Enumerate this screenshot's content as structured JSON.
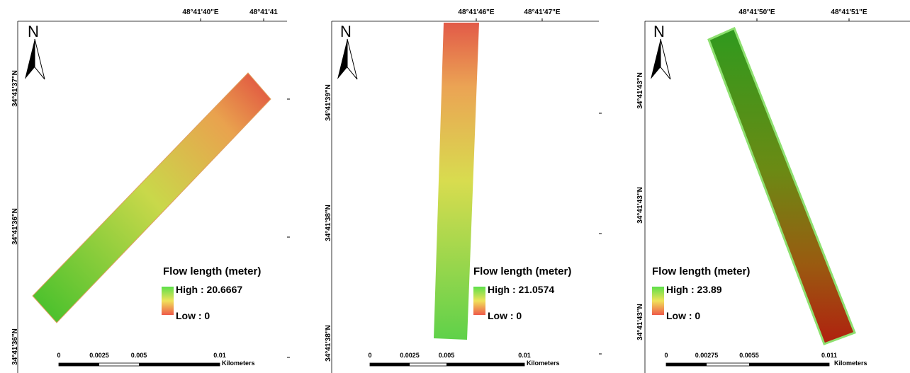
{
  "panels": [
    {
      "longitudes": [
        "48°41'40\"E",
        "48°41'41"
      ],
      "latitudes": [
        "34°41'37\"N",
        "34°41'36\"N",
        "34°41'36\"N"
      ],
      "north": "N",
      "legend": {
        "title": "Flow length (meter)",
        "high": "High : 20.6667",
        "low": "Low : 0"
      },
      "scale": {
        "labels": [
          "0",
          "0.0025",
          "0.005",
          "0.01"
        ],
        "unit": "Kilometers"
      }
    },
    {
      "longitudes": [
        "48°41'46\"E",
        "48°41'47\"E"
      ],
      "latitudes": [
        "34°41'39\"N",
        "34°41'38\"N",
        "34°41'38\"N"
      ],
      "north": "N",
      "legend": {
        "title": "Flow length (meter)",
        "high": "High : 21.0574",
        "low": "Low : 0"
      },
      "scale": {
        "labels": [
          "0",
          "0.0025",
          "0.005",
          "0.01"
        ],
        "unit": "Kilometers"
      }
    },
    {
      "longitudes": [
        "48°41'50\"E",
        "48°41'51\"E"
      ],
      "latitudes": [
        "34°41'43\"N",
        "34°41'43\"N",
        "34°41'43\"N"
      ],
      "north": "N",
      "legend": {
        "title": "Flow length (meter)",
        "high": "High : 23.89",
        "low": "Low : 0"
      },
      "scale": {
        "labels": [
          "0",
          "0.00275",
          "0.0055",
          "0.011"
        ],
        "unit": "Kilometers"
      }
    }
  ]
}
